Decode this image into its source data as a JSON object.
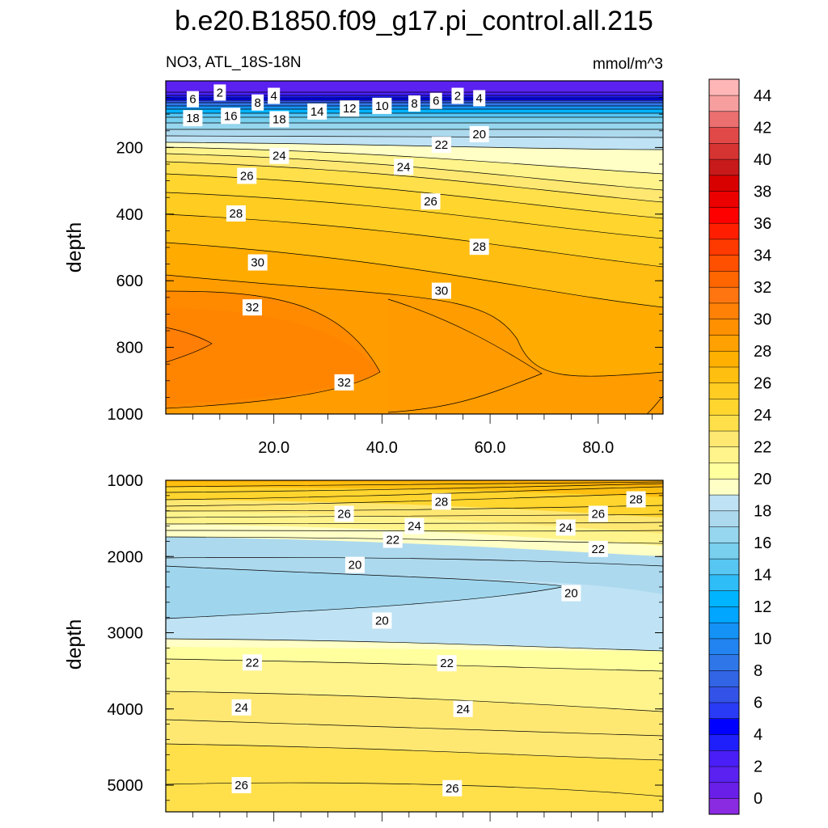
{
  "title": "b.e20.B1850.f09_g17.pi_control.all.215",
  "subtitle_left": "NO3, ATL_18S-18N",
  "subtitle_right": "mmol/m^3",
  "chart_data": [
    {
      "type": "contour",
      "panel": "upper",
      "ylabel": "depth",
      "xlabel": "",
      "xlim": [
        0,
        92
      ],
      "ylim": [
        1000,
        0
      ],
      "xticks": [
        20,
        40,
        60,
        80
      ],
      "xtick_labels": [
        "20.0",
        "40.0",
        "60.0",
        "80.0"
      ],
      "yticks": [
        200,
        400,
        600,
        800,
        1000
      ],
      "ytick_labels": [
        "200",
        "400",
        "600",
        "800",
        "1000"
      ],
      "levels": [
        2,
        4,
        6,
        8,
        10,
        12,
        14,
        16,
        18,
        20,
        22,
        24,
        26,
        28,
        30,
        32
      ],
      "contour_labels": [
        {
          "text": "2",
          "x": 10,
          "y": 35
        },
        {
          "text": "4",
          "x": 20,
          "y": 45
        },
        {
          "text": "6",
          "x": 5,
          "y": 55
        },
        {
          "text": "8",
          "x": 17,
          "y": 65
        },
        {
          "text": "16",
          "x": 12,
          "y": 105
        },
        {
          "text": "18",
          "x": 5,
          "y": 112
        },
        {
          "text": "18",
          "x": 21,
          "y": 115
        },
        {
          "text": "14",
          "x": 28,
          "y": 92
        },
        {
          "text": "12",
          "x": 34,
          "y": 83
        },
        {
          "text": "10",
          "x": 40,
          "y": 75
        },
        {
          "text": "8",
          "x": 46,
          "y": 68
        },
        {
          "text": "6",
          "x": 50,
          "y": 60
        },
        {
          "text": "2",
          "x": 54,
          "y": 45
        },
        {
          "text": "4",
          "x": 58,
          "y": 52
        },
        {
          "text": "20",
          "x": 58,
          "y": 160
        },
        {
          "text": "22",
          "x": 51,
          "y": 192
        },
        {
          "text": "24",
          "x": 21,
          "y": 225
        },
        {
          "text": "24",
          "x": 44,
          "y": 258
        },
        {
          "text": "26",
          "x": 15,
          "y": 285
        },
        {
          "text": "26",
          "x": 49,
          "y": 362
        },
        {
          "text": "28",
          "x": 13,
          "y": 398
        },
        {
          "text": "28",
          "x": 58,
          "y": 498
        },
        {
          "text": "30",
          "x": 17,
          "y": 545
        },
        {
          "text": "30",
          "x": 51,
          "y": 630
        },
        {
          "text": "32",
          "x": 16,
          "y": 680
        },
        {
          "text": "32",
          "x": 33,
          "y": 905
        }
      ]
    },
    {
      "type": "contour",
      "panel": "lower",
      "ylabel": "depth",
      "xlabel": "",
      "xlim": [
        0,
        92
      ],
      "ylim": [
        5350,
        1000
      ],
      "yticks": [
        1000,
        2000,
        3000,
        4000,
        5000
      ],
      "ytick_labels": [
        "1000",
        "2000",
        "3000",
        "4000",
        "5000"
      ],
      "levels": [
        20,
        22,
        24,
        26,
        28
      ],
      "contour_labels": [
        {
          "text": "28",
          "x": 51,
          "y": 1280
        },
        {
          "text": "28",
          "x": 87,
          "y": 1250
        },
        {
          "text": "26",
          "x": 33,
          "y": 1440
        },
        {
          "text": "26",
          "x": 80,
          "y": 1440
        },
        {
          "text": "24",
          "x": 46,
          "y": 1600
        },
        {
          "text": "24",
          "x": 74,
          "y": 1620
        },
        {
          "text": "22",
          "x": 42,
          "y": 1780
        },
        {
          "text": "22",
          "x": 80,
          "y": 1900
        },
        {
          "text": "20",
          "x": 35,
          "y": 2110
        },
        {
          "text": "20",
          "x": 75,
          "y": 2480
        },
        {
          "text": "20",
          "x": 40,
          "y": 2840
        },
        {
          "text": "22",
          "x": 16,
          "y": 3390
        },
        {
          "text": "22",
          "x": 52,
          "y": 3400
        },
        {
          "text": "24",
          "x": 14,
          "y": 3980
        },
        {
          "text": "24",
          "x": 55,
          "y": 4000
        },
        {
          "text": "26",
          "x": 14,
          "y": 5000
        },
        {
          "text": "26",
          "x": 53,
          "y": 5040
        }
      ]
    }
  ],
  "colorbar": {
    "colors": [
      "#8a2be2",
      "#6a1fe8",
      "#5b21f0",
      "#4a1ff7",
      "#1f1ffb",
      "#0000ff",
      "#2a3bf5",
      "#3353e8",
      "#3264e6",
      "#2f77e9",
      "#2284f0",
      "#1492f6",
      "#00a6ff",
      "#00b4ff",
      "#2fbdf7",
      "#57c6f2",
      "#78cfee",
      "#96d6ee",
      "#add9ee",
      "#bfe3f4",
      "#ffffc6",
      "#ffff9e",
      "#fff48c",
      "#ffe872",
      "#ffe04b",
      "#ffd52e",
      "#ffcc22",
      "#ffbf10",
      "#ffb000",
      "#ffa100",
      "#ff9000",
      "#ff8206",
      "#ff7610",
      "#ff6600",
      "#ff5000",
      "#ff3a00",
      "#ff1f00",
      "#ff0000",
      "#ec0000",
      "#d90000",
      "#c81a1a",
      "#d63333",
      "#e14848",
      "#ec6f6f",
      "#f79f9f",
      "#ffb6b6"
    ],
    "tick_labels": [
      "0",
      "2",
      "4",
      "6",
      "8",
      "10",
      "12",
      "14",
      "16",
      "18",
      "20",
      "22",
      "24",
      "26",
      "28",
      "30",
      "32",
      "34",
      "36",
      "38",
      "40",
      "42",
      "44"
    ]
  }
}
